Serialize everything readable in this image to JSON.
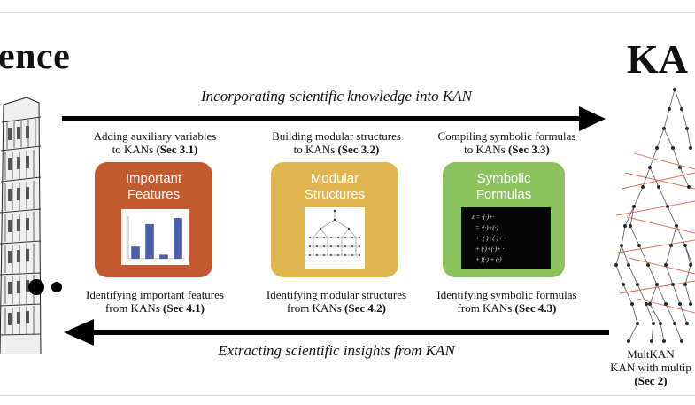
{
  "header": {
    "science_word": "ence",
    "kan_word": "KA"
  },
  "top_arrow": {
    "label": "Incorporating scientific knowledge into KAN"
  },
  "bottom_arrow": {
    "label": "Extracting scientific insights from KAN"
  },
  "columns": [
    {
      "top_caption_line1": "Adding auxiliary variables",
      "top_caption_prefix": "to KANs ",
      "top_caption_sec": "(Sec 3.1)",
      "card_title_line1": "Important",
      "card_title_line2": "Features",
      "card_color": "#c2592f",
      "bottom_caption_line1": "Identifying important features",
      "bottom_caption_prefix": "from KANs ",
      "bottom_caption_sec": "(Sec 4.1)"
    },
    {
      "top_caption_line1": "Building modular structures",
      "top_caption_prefix": "to KANs ",
      "top_caption_sec": "(Sec 3.2)",
      "card_title_line1": "Modular",
      "card_title_line2": "Structures",
      "card_color": "#e0b550",
      "bottom_caption_line1": "Identifying modular structures",
      "bottom_caption_prefix": "from KANs ",
      "bottom_caption_sec": "(Sec 4.2)"
    },
    {
      "top_caption_line1": "Compiling symbolic formulas",
      "top_caption_prefix": "to KANs ",
      "top_caption_sec": "(Sec 3.3)",
      "card_title_line1": "Symbolic",
      "card_title_line2": "Formulas",
      "card_color": "#8cc35f",
      "bottom_caption_line1": "Identifying symbolic formulas",
      "bottom_caption_prefix": "from KANs ",
      "bottom_caption_sec": "(Sec 4.3)"
    }
  ],
  "multkan": {
    "line1": "MultKAN",
    "line2": "KAN with multip",
    "sec": "(Sec 2)"
  },
  "bar_chart": {
    "values": [
      0.3,
      0.85,
      0.1,
      1.0
    ],
    "color": "#4a5fa8"
  },
  "formula_lines": [
    "z = ·(·)+·",
    "= ·(·)+(·)",
    "+ ·(·)+(·)+ ·",
    "+ (·)+(·)+ ·",
    "+ f(·) + (·)"
  ],
  "colors": {
    "arrow": "#000000",
    "network_node": "#2a2a2a",
    "network_edge": "#555555",
    "network_red": "#d9553c"
  }
}
